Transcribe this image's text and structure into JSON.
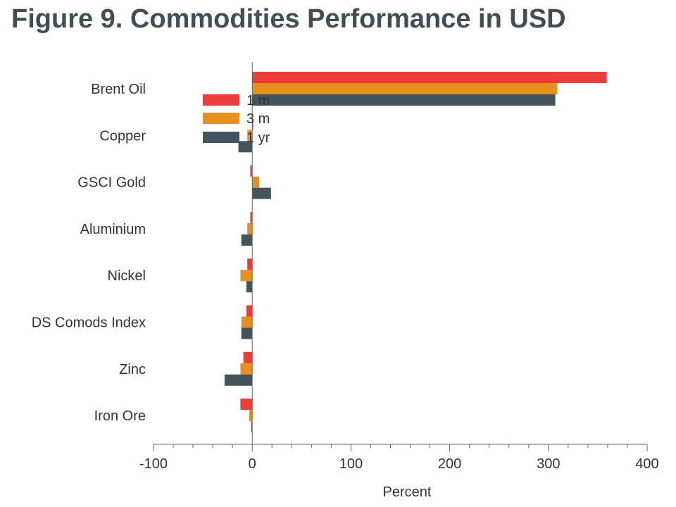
{
  "title": "Figure 9. Commodities Performance in USD",
  "chart_data": {
    "type": "bar",
    "orientation": "horizontal",
    "categories": [
      "Brent Oil",
      "Copper",
      "GSCI Gold",
      "Aluminium",
      "Nickel",
      "DS Comods Index",
      "Zinc",
      "Iron Ore"
    ],
    "series": [
      {
        "name": "1 m",
        "color": "#ef3b39",
        "values": [
          359,
          1,
          -2,
          -2,
          -5,
          -6,
          -9,
          -12
        ]
      },
      {
        "name": "3 m",
        "color": "#e8901e",
        "values": [
          309,
          -5,
          7,
          -5,
          -12,
          -11,
          -12,
          -3
        ]
      },
      {
        "name": "1 yr",
        "color": "#44545c",
        "values": [
          307,
          -14,
          19,
          -11,
          -6,
          -11,
          -28,
          -1
        ]
      }
    ],
    "xlabel": "Percent",
    "xlim": [
      -100,
      400
    ],
    "xticks": [
      "-100",
      "0",
      "100",
      "200",
      "300",
      "400"
    ],
    "legend_position": "upper-left of plot",
    "grid": false
  }
}
